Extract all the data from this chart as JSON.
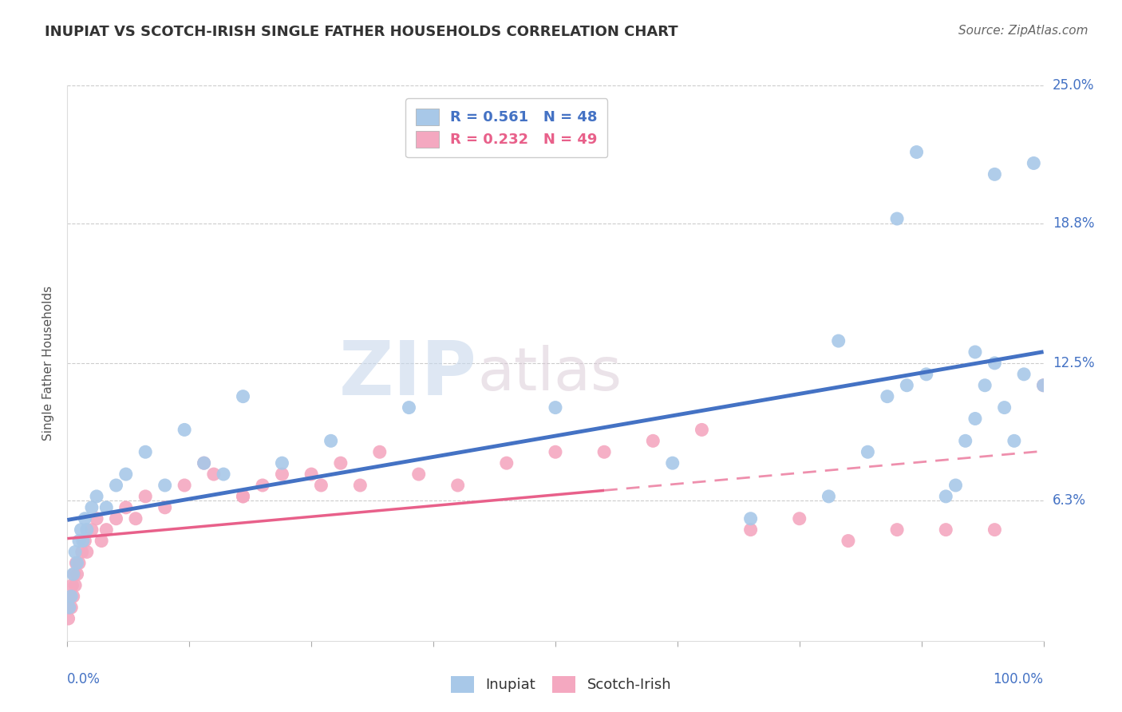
{
  "title": "INUPIAT VS SCOTCH-IRISH SINGLE FATHER HOUSEHOLDS CORRELATION CHART",
  "source": "Source: ZipAtlas.com",
  "ylabel": "Single Father Households",
  "ytick_labels": [
    "0.0%",
    "6.3%",
    "12.5%",
    "18.8%",
    "25.0%"
  ],
  "ytick_values": [
    0.0,
    6.3,
    12.5,
    18.8,
    25.0
  ],
  "xrange": [
    0.0,
    100.0
  ],
  "yrange": [
    0.0,
    25.0
  ],
  "legend_r_blue": "R = 0.561",
  "legend_n_blue": "N = 48",
  "legend_r_pink": "R = 0.232",
  "legend_n_pink": "N = 49",
  "color_blue": "#A8C8E8",
  "color_pink": "#F4A8C0",
  "color_blue_line": "#4472C4",
  "color_pink_line": "#E8608A",
  "watermark_zip": "ZIP",
  "watermark_atlas": "atlas",
  "inupiat_x": [
    0.2,
    0.4,
    0.6,
    0.8,
    1.0,
    1.2,
    1.4,
    1.6,
    1.8,
    2.0,
    2.5,
    3.0,
    4.0,
    5.0,
    6.0,
    8.0,
    10.0,
    12.0,
    14.0,
    16.0,
    18.0,
    22.0,
    27.0,
    35.0,
    50.0,
    62.0,
    70.0,
    78.0,
    82.0,
    84.0,
    86.0,
    88.0,
    90.0,
    91.0,
    92.0,
    93.0,
    94.0,
    95.0,
    96.0,
    97.0,
    98.0,
    99.0,
    100.0,
    79.0,
    85.0,
    87.0,
    93.0,
    95.0
  ],
  "inupiat_y": [
    1.5,
    2.0,
    3.0,
    4.0,
    3.5,
    4.5,
    5.0,
    4.5,
    5.5,
    5.0,
    6.0,
    6.5,
    6.0,
    7.0,
    7.5,
    8.5,
    7.0,
    9.5,
    8.0,
    7.5,
    11.0,
    8.0,
    9.0,
    10.5,
    10.5,
    8.0,
    5.5,
    6.5,
    8.5,
    11.0,
    11.5,
    12.0,
    6.5,
    7.0,
    9.0,
    10.0,
    11.5,
    12.5,
    10.5,
    9.0,
    12.0,
    21.5,
    11.5,
    13.5,
    19.0,
    22.0,
    13.0,
    21.0
  ],
  "scotch_x": [
    0.1,
    0.2,
    0.3,
    0.4,
    0.5,
    0.6,
    0.7,
    0.8,
    0.9,
    1.0,
    1.2,
    1.5,
    1.8,
    2.0,
    2.5,
    3.0,
    3.5,
    4.0,
    5.0,
    6.0,
    7.0,
    8.0,
    10.0,
    12.0,
    15.0,
    18.0,
    20.0,
    25.0,
    28.0,
    30.0,
    14.0,
    18.0,
    22.0,
    26.0,
    32.0,
    36.0,
    40.0,
    45.0,
    50.0,
    55.0,
    60.0,
    65.0,
    70.0,
    75.0,
    80.0,
    85.0,
    90.0,
    95.0,
    100.0
  ],
  "scotch_y": [
    1.0,
    1.5,
    2.0,
    1.5,
    2.5,
    2.0,
    3.0,
    2.5,
    3.5,
    3.0,
    3.5,
    4.0,
    4.5,
    4.0,
    5.0,
    5.5,
    4.5,
    5.0,
    5.5,
    6.0,
    5.5,
    6.5,
    6.0,
    7.0,
    7.5,
    6.5,
    7.0,
    7.5,
    8.0,
    7.0,
    8.0,
    6.5,
    7.5,
    7.0,
    8.5,
    7.5,
    7.0,
    8.0,
    8.5,
    8.5,
    9.0,
    9.5,
    5.0,
    5.5,
    4.5,
    5.0,
    5.0,
    5.0,
    11.5
  ],
  "blue_line_x0": 0.0,
  "blue_line_x1": 100.0,
  "pink_line_x0": 0.0,
  "pink_line_x1": 55.0
}
